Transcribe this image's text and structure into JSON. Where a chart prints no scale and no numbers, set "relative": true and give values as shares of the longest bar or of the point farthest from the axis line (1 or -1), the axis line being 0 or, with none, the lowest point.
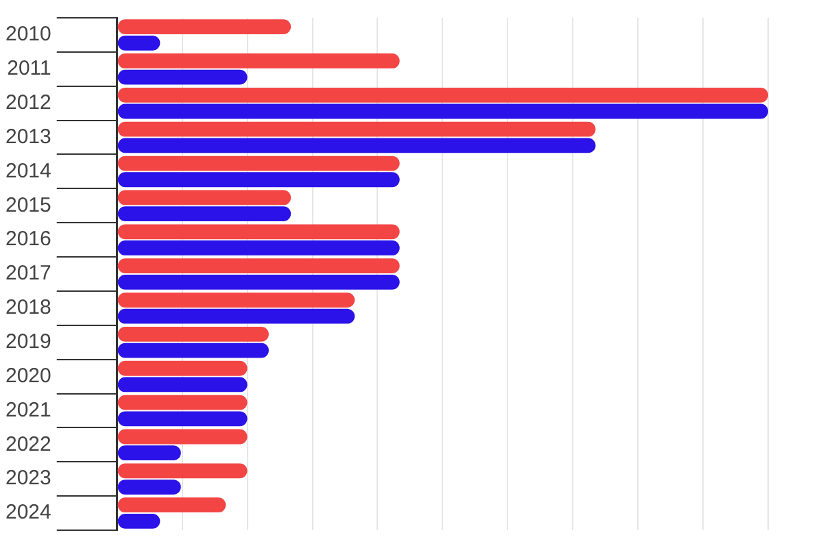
{
  "chart_data": {
    "type": "bar",
    "orientation": "horizontal",
    "relative": true,
    "grid": "x",
    "categories": [
      "2010",
      "2011",
      "2012",
      "2013",
      "2014",
      "2015",
      "2016",
      "2017",
      "2018",
      "2019",
      "2020",
      "2021",
      "2022",
      "2023",
      "2024"
    ],
    "series": [
      {
        "color": "#f44545",
        "values": [
          0.267,
          0.434,
          1,
          0.735,
          0.434,
          0.267,
          0.434,
          0.434,
          0.365,
          0.233,
          0.2,
          0.2,
          0.2,
          0.2,
          0.167
        ]
      },
      {
        "color": "#2b12e8",
        "values": [
          0.066,
          0.2,
          1,
          0.735,
          0.434,
          0.267,
          0.434,
          0.434,
          0.365,
          0.233,
          0.2,
          0.2,
          0.098,
          0.098,
          0.066
        ]
      }
    ]
  }
}
